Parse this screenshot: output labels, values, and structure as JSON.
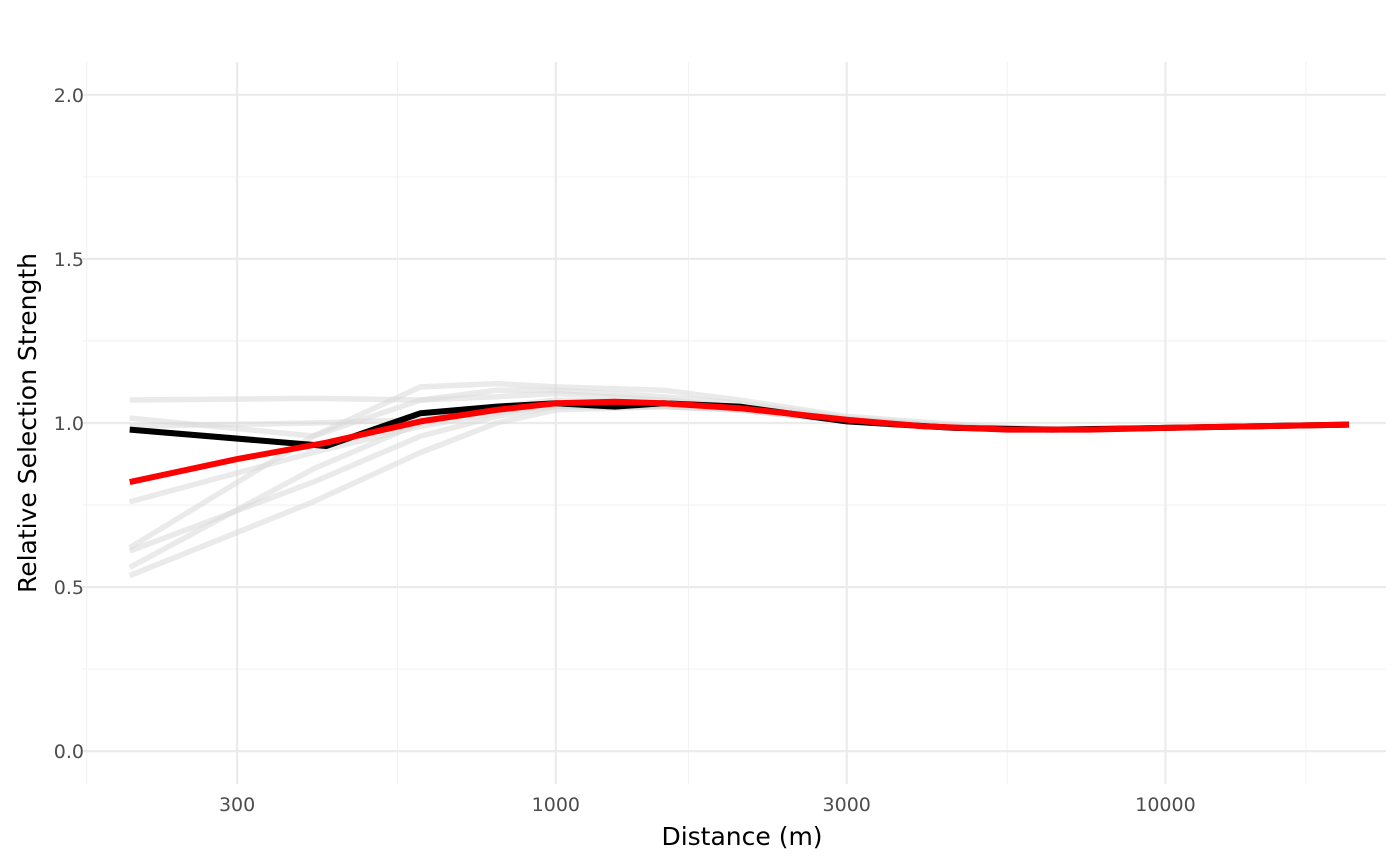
{
  "chart_data": {
    "type": "line",
    "title": "",
    "xlabel": "Distance (m)",
    "ylabel": "Relative Selection Strength",
    "x_scale": "log10",
    "xlim": [
      167,
      23000
    ],
    "ylim": [
      -0.1,
      2.1
    ],
    "grid": true,
    "x_ticks": [
      {
        "value": 300,
        "label": "300"
      },
      {
        "value": 1000,
        "label": "1000"
      },
      {
        "value": 3000,
        "label": "3000"
      },
      {
        "value": 10000,
        "label": "10000"
      }
    ],
    "x_minor_ticks": [
      170,
      550,
      1650,
      5500,
      17000
    ],
    "y_ticks": [
      {
        "value": 0.0,
        "label": "0.0"
      },
      {
        "value": 0.5,
        "label": "0.5"
      },
      {
        "value": 1.0,
        "label": "1.0"
      },
      {
        "value": 1.5,
        "label": "1.5"
      },
      {
        "value": 2.0,
        "label": "2.0"
      }
    ],
    "y_minor_ticks": [
      0.25,
      0.75,
      1.25,
      1.75
    ],
    "colors": {
      "replicates": "#d9d9d9",
      "observed": "#000000",
      "fit": "#ff0000",
      "grid": "#ebebeb"
    },
    "series": [
      {
        "role": "replicate",
        "x": [
          200,
          400,
          600,
          800,
          1000,
          1500,
          2000,
          3000,
          5000,
          7000,
          10000,
          20000
        ],
        "y": [
          1.07,
          1.075,
          1.07,
          1.08,
          1.09,
          1.07,
          1.05,
          1.01,
          0.985,
          0.98,
          0.985,
          0.995
        ]
      },
      {
        "role": "replicate",
        "x": [
          200,
          400,
          600,
          800,
          1000,
          1500,
          2000,
          3000,
          5000,
          7000,
          10000,
          20000
        ],
        "y": [
          1.015,
          0.96,
          1.11,
          1.12,
          1.11,
          1.1,
          1.07,
          1.02,
          0.99,
          0.98,
          0.985,
          0.995
        ]
      },
      {
        "role": "replicate",
        "x": [
          200,
          400,
          600,
          800,
          1000,
          1500,
          2000,
          3000,
          5000,
          7000,
          10000,
          20000
        ],
        "y": [
          0.62,
          0.96,
          1.07,
          1.1,
          1.1,
          1.08,
          1.06,
          1.015,
          0.985,
          0.98,
          0.985,
          0.995
        ]
      },
      {
        "role": "replicate",
        "x": [
          200,
          400,
          600,
          800,
          1000,
          1500,
          2000,
          3000,
          5000,
          7000,
          10000,
          20000
        ],
        "y": [
          0.56,
          0.86,
          1.0,
          1.05,
          1.07,
          1.06,
          1.05,
          1.01,
          0.985,
          0.98,
          0.985,
          0.995
        ]
      },
      {
        "role": "replicate",
        "x": [
          200,
          400,
          600,
          800,
          1000,
          1500,
          2000,
          3000,
          5000,
          7000,
          10000,
          20000
        ],
        "y": [
          0.535,
          0.76,
          0.91,
          1.0,
          1.04,
          1.05,
          1.04,
          1.005,
          0.985,
          0.98,
          0.985,
          0.995
        ]
      },
      {
        "role": "replicate",
        "x": [
          200,
          400,
          600,
          800,
          1000,
          1500,
          2000,
          3000,
          5000,
          7000,
          10000,
          20000
        ],
        "y": [
          0.61,
          0.82,
          0.96,
          1.02,
          1.05,
          1.05,
          1.04,
          1.005,
          0.985,
          0.98,
          0.985,
          0.995
        ]
      },
      {
        "role": "replicate",
        "x": [
          200,
          400,
          600,
          800,
          1000,
          1500,
          2000,
          3000,
          5000,
          7000,
          10000,
          20000
        ],
        "y": [
          0.76,
          0.91,
          0.99,
          1.03,
          1.055,
          1.055,
          1.045,
          1.005,
          0.985,
          0.98,
          0.985,
          0.995
        ]
      },
      {
        "role": "replicate",
        "x": [
          200,
          400,
          600,
          800,
          1000,
          1500,
          2000,
          3000,
          5000,
          7000,
          10000,
          20000
        ],
        "y": [
          0.99,
          1.0,
          1.01,
          1.04,
          1.05,
          1.05,
          1.04,
          1.005,
          0.985,
          0.98,
          0.985,
          0.995
        ]
      },
      {
        "role": "observed",
        "x": [
          200,
          420,
          600,
          800,
          1000,
          1250,
          1500,
          2000,
          3000,
          4500,
          6500,
          10000,
          20000
        ],
        "y": [
          0.98,
          0.93,
          1.03,
          1.05,
          1.06,
          1.05,
          1.06,
          1.05,
          1.005,
          0.985,
          0.98,
          0.985,
          0.995
        ]
      },
      {
        "role": "fit",
        "x": [
          200,
          300,
          420,
          600,
          800,
          1000,
          1250,
          1500,
          2000,
          3000,
          4000,
          5500,
          7500,
          10000,
          20000
        ],
        "y": [
          0.82,
          0.89,
          0.94,
          1.005,
          1.04,
          1.06,
          1.065,
          1.06,
          1.045,
          1.01,
          0.99,
          0.98,
          0.98,
          0.985,
          0.995
        ]
      }
    ]
  }
}
